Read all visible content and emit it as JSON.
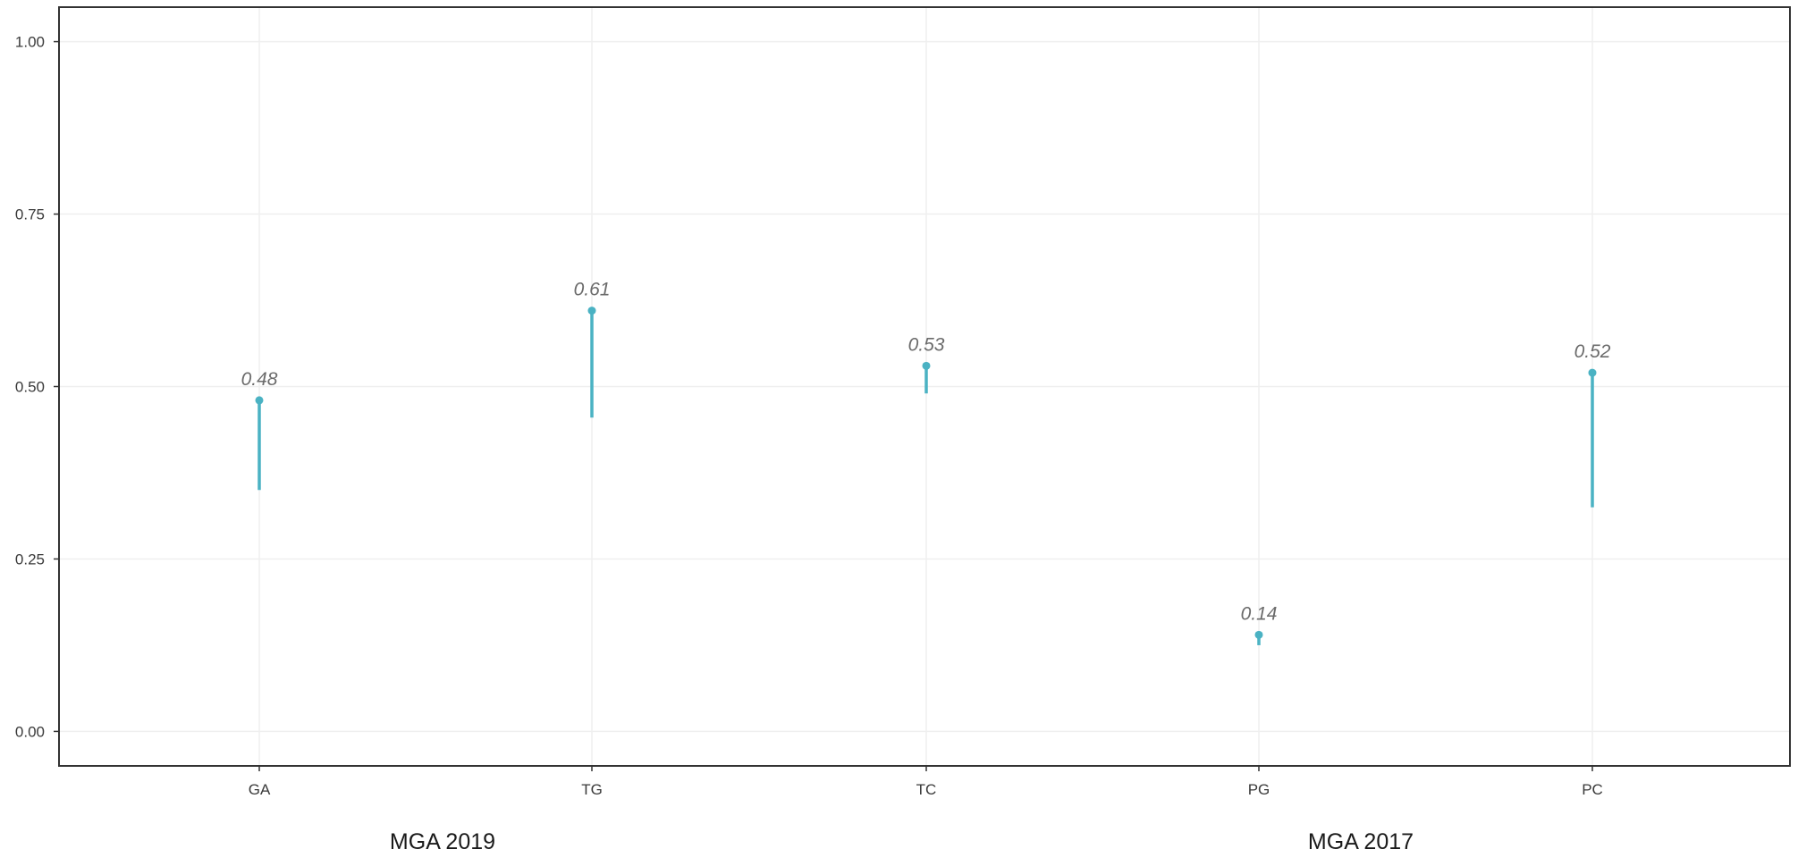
{
  "chart_data": {
    "type": "scatter",
    "title": "",
    "xlabel": "",
    "ylabel": "",
    "ylim": [
      -0.05,
      1.05
    ],
    "y_ticks": [
      {
        "value": 0.0,
        "label": "0.00"
      },
      {
        "value": 0.25,
        "label": "0.25"
      },
      {
        "value": 0.5,
        "label": "0.50"
      },
      {
        "value": 0.75,
        "label": "0.75"
      },
      {
        "value": 1.0,
        "label": "1.00"
      }
    ],
    "categories": [
      "GA",
      "TG",
      "TC",
      "PG",
      "PC"
    ],
    "points": [
      {
        "category": "GA",
        "value": 0.48,
        "lower": 0.35,
        "upper": 0.48,
        "label": "0.48"
      },
      {
        "category": "TG",
        "value": 0.61,
        "lower": 0.455,
        "upper": 0.61,
        "label": "0.61"
      },
      {
        "category": "TC",
        "value": 0.53,
        "lower": 0.49,
        "upper": 0.53,
        "label": "0.53"
      },
      {
        "category": "PG",
        "value": 0.14,
        "lower": 0.125,
        "upper": 0.14,
        "label": "0.14"
      },
      {
        "category": "PC",
        "value": 0.52,
        "lower": 0.325,
        "upper": 0.52,
        "label": "0.52"
      }
    ],
    "groups": [
      {
        "label": "MGA 2019",
        "categories": [
          "GA",
          "TG",
          "TC"
        ]
      },
      {
        "label": "MGA 2017",
        "categories": [
          "PG",
          "PC"
        ]
      }
    ],
    "grid": true,
    "legend": "none",
    "colors": {
      "series": "#4ab2c3",
      "grid": "#efefef",
      "axis": "#333333"
    }
  }
}
